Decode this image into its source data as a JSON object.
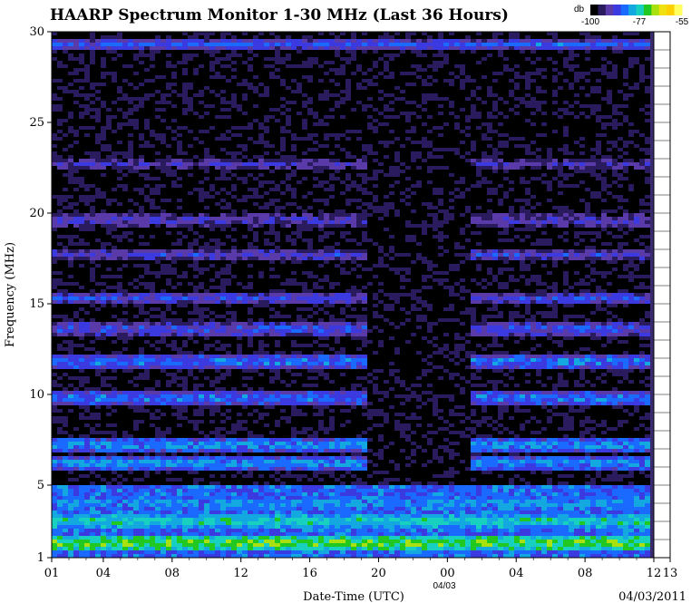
{
  "chart_data": {
    "type": "heatmap",
    "title": "HAARP Spectrum Monitor 1-30 MHz (Last 36 Hours)",
    "xlabel": "Date-Time (UTC)",
    "ylabel": "Frequency (MHz)",
    "date_label": "04/03/2011",
    "day_marker": "04/03",
    "ylim": [
      1,
      30
    ],
    "y_ticks": [
      "1",
      "5",
      "10",
      "15",
      "20",
      "25",
      "30"
    ],
    "x_ticks": [
      "01",
      "04",
      "08",
      "12",
      "16",
      "20",
      "00",
      "04",
      "08",
      "12",
      "13"
    ],
    "colorbar": {
      "unit": "db",
      "tick_labels": [
        "-100",
        "-77",
        "-55"
      ],
      "range": [
        -100,
        -55
      ],
      "colors": [
        "#000000",
        "#2a1a5e",
        "#5a3aa8",
        "#3a3ae0",
        "#1a6aff",
        "#14a8e0",
        "#18d0c0",
        "#22c822",
        "#a8e010",
        "#f0e010",
        "#ffd000",
        "#ffff60"
      ]
    },
    "background_level_db": -95,
    "bands": [
      {
        "mhz": 1.8,
        "db": -70,
        "note": "strong low band"
      },
      {
        "mhz": 3.0,
        "db": -75
      },
      {
        "mhz": 4.0,
        "db": -80
      },
      {
        "mhz": 6.2,
        "db": -80
      },
      {
        "mhz": 7.2,
        "db": -80
      },
      {
        "mhz": 9.8,
        "db": -82
      },
      {
        "mhz": 11.8,
        "db": -82
      },
      {
        "mhz": 13.6,
        "db": -85
      },
      {
        "mhz": 15.3,
        "db": -86
      },
      {
        "mhz": 17.7,
        "db": -88
      },
      {
        "mhz": 19.6,
        "db": -88
      },
      {
        "mhz": 22.7,
        "db": -90
      },
      {
        "mhz": 29.3,
        "db": -85
      }
    ]
  }
}
